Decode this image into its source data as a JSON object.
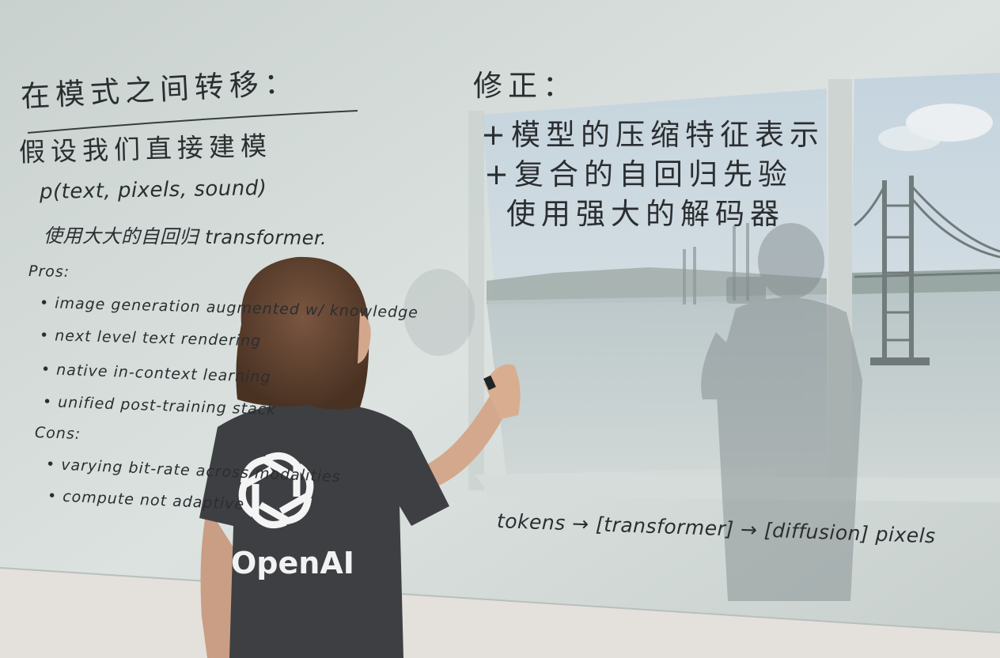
{
  "whiteboard_left": {
    "heading": "在模式之间转移：",
    "line1": "假设我们直接建模",
    "formula": "p(text, pixels, sound)",
    "line3": "使用大大的自回归 transformer.",
    "pros_label": "Pros:",
    "pros": [
      "• image generation augmented w/ knowledge",
      "• next level text rendering",
      "• native in-context learning",
      "• unified post-training stack"
    ],
    "cons_label": "Cons:",
    "cons": [
      "• varying bit-rate across modalities",
      "• compute not adaptive"
    ]
  },
  "whiteboard_right": {
    "heading": "修正：",
    "fixes": [
      "+模型的压缩特征表示",
      "+复合的自回归先验",
      "使用强大的解码器"
    ],
    "pipeline": "tokens → [transformer] → [diffusion]  pixels"
  },
  "shirt_logo_text": "OpenAI",
  "colors": {
    "board": "#d3dbd9",
    "ink": "#2b2e31",
    "shirt": "#3d3f42",
    "hair": "#6b4a36",
    "sky": "#c9d6de",
    "water": "#b4c2c4"
  }
}
